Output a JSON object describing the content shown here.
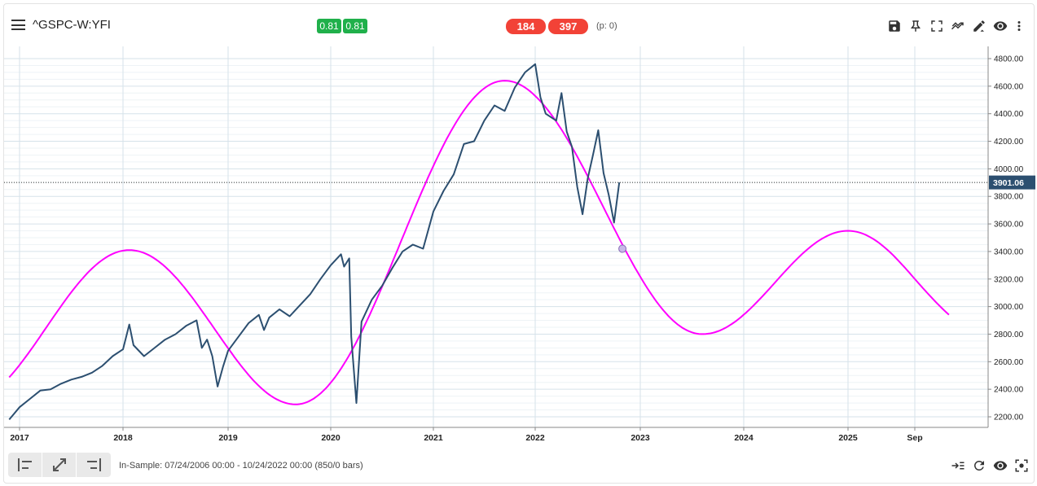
{
  "header": {
    "title": "^GSPC-W:YFI",
    "badge_green_1": "0.81",
    "badge_green_2": "0.81",
    "badge_red_1": "184",
    "badge_red_2": "397",
    "p_count": "(p: 0)"
  },
  "toolbar_icons": [
    "save-icon",
    "pin-icon",
    "fullscreen-icon",
    "trend-icon",
    "draw-icon",
    "eye-icon",
    "more-vert-icon"
  ],
  "footer": {
    "in_sample": "In-Sample: 07/24/2006 00:00 - 10/24/2022 00:00 (850/0 bars)",
    "icons": [
      "align-left-icon",
      "expand-icon",
      "align-right-icon",
      "scroll-right-icon",
      "refresh-icon",
      "eye-icon",
      "screenshot-icon"
    ]
  },
  "colors": {
    "price_line": "#2c4f70",
    "cycle_line": "#ff00ff",
    "grid": "#d6e2ea",
    "price_tag_bg": "#2c4f70",
    "badge_green": "#20b04b",
    "badge_red": "#f24237"
  },
  "chart_data": {
    "type": "line",
    "x_axis_labels": [
      "2017",
      "2018",
      "2019",
      "2020",
      "2021",
      "2022",
      "2023",
      "2024",
      "2025",
      "Sep"
    ],
    "y_axis_labels": [
      "2200.00",
      "2400.00",
      "2600.00",
      "2800.00",
      "3000.00",
      "3200.00",
      "3400.00",
      "3600.00",
      "3800.00",
      "4000.00",
      "4200.00",
      "4400.00",
      "4600.00",
      "4800.00"
    ],
    "ylim": [
      2160,
      4860
    ],
    "xlim": [
      2016.9,
      2026.4
    ],
    "current_price": 3901.06,
    "current_price_label": "3901.06",
    "grid": true,
    "series": [
      {
        "type": "price",
        "x": [
          2016.9,
          2017.0,
          2017.1,
          2017.2,
          2017.3,
          2017.4,
          2017.5,
          2017.6,
          2017.7,
          2017.8,
          2017.9,
          2018.0,
          2018.06,
          2018.1,
          2018.2,
          2018.3,
          2018.4,
          2018.5,
          2018.6,
          2018.7,
          2018.75,
          2018.8,
          2018.85,
          2018.9,
          2018.95,
          2019.0,
          2019.1,
          2019.2,
          2019.3,
          2019.35,
          2019.4,
          2019.5,
          2019.6,
          2019.7,
          2019.8,
          2019.9,
          2020.0,
          2020.1,
          2020.13,
          2020.18,
          2020.2,
          2020.25,
          2020.3,
          2020.4,
          2020.5,
          2020.6,
          2020.7,
          2020.8,
          2020.9,
          2021.0,
          2021.1,
          2021.2,
          2021.3,
          2021.4,
          2021.5,
          2021.6,
          2021.7,
          2021.8,
          2021.9,
          2022.0,
          2022.05,
          2022.1,
          2022.2,
          2022.25,
          2022.3,
          2022.35,
          2022.4,
          2022.45,
          2022.5,
          2022.55,
          2022.6,
          2022.65,
          2022.7,
          2022.75,
          2022.8
        ],
        "values": [
          2180,
          2270,
          2330,
          2390,
          2400,
          2440,
          2470,
          2490,
          2520,
          2570,
          2640,
          2690,
          2870,
          2720,
          2640,
          2700,
          2760,
          2800,
          2860,
          2900,
          2700,
          2760,
          2640,
          2420,
          2560,
          2680,
          2780,
          2880,
          2940,
          2830,
          2920,
          2980,
          2930,
          3010,
          3090,
          3200,
          3300,
          3380,
          3290,
          3350,
          2780,
          2300,
          2890,
          3050,
          3150,
          3280,
          3400,
          3450,
          3420,
          3690,
          3840,
          3960,
          4180,
          4200,
          4350,
          4460,
          4420,
          4590,
          4700,
          4760,
          4520,
          4400,
          4350,
          4550,
          4270,
          4160,
          3870,
          3670,
          3930,
          4100,
          4280,
          3970,
          3810,
          3610,
          3901.06
        ]
      },
      {
        "type": "cycle",
        "x_start": 2016.9,
        "x_end": 2026.0,
        "peaks": [
          {
            "x": 2018.06,
            "y": 3410
          },
          {
            "x": 2021.7,
            "y": 4640
          },
          {
            "x": 2025.0,
            "y": 3550
          }
        ],
        "troughs": [
          {
            "x": 2019.66,
            "y": 2290
          },
          {
            "x": 2023.6,
            "y": 2800
          }
        ],
        "marker": {
          "x": 2022.83,
          "y": 3420
        }
      }
    ]
  }
}
